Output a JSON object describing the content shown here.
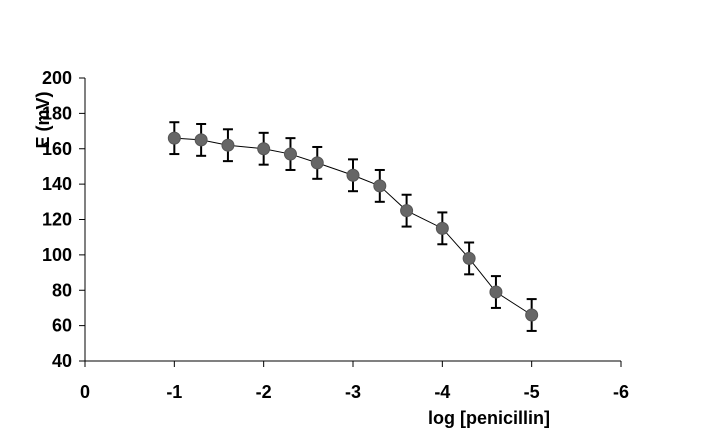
{
  "chart_data": {
    "type": "scatter",
    "xlabel": "log [penicillin]",
    "ylabel": "E (mV)",
    "xlim": [
      0,
      -6
    ],
    "ylim": [
      40,
      200
    ],
    "x_ticks": [
      0,
      -1,
      -2,
      -3,
      -4,
      -5,
      -6
    ],
    "y_ticks": [
      40,
      60,
      80,
      100,
      120,
      140,
      160,
      180,
      200
    ],
    "grid": false,
    "legend": "none",
    "marker_color": "#666666",
    "line_color": "#000000",
    "series": [
      {
        "x": [
          -1,
          -1.3,
          -1.6,
          -2,
          -2.3,
          -2.6,
          -3,
          -3.3,
          -3.6,
          -4,
          -4.3,
          -4.6,
          -5
        ],
        "values": [
          166,
          165,
          162,
          160,
          157,
          152,
          145,
          139,
          125,
          115,
          98,
          79,
          66
        ],
        "error": [
          9,
          9,
          9,
          9,
          9,
          9,
          9,
          9,
          9,
          9,
          9,
          9,
          9
        ]
      }
    ]
  }
}
